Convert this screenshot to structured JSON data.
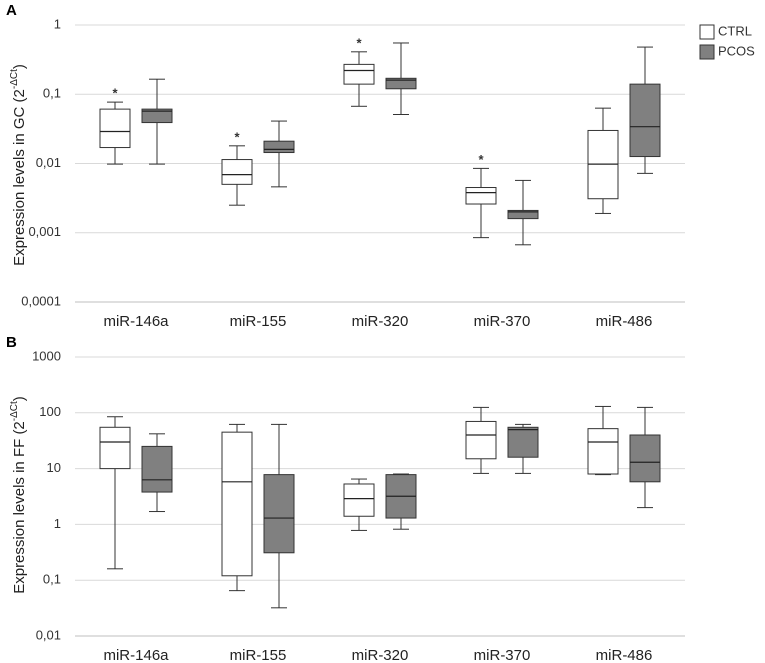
{
  "chart_data": [
    {
      "type": "box",
      "panel": "A",
      "ylabel": {
        "base": "Expression levels in GC (2",
        "sup": "-ΔCt",
        "end": ")"
      },
      "categories": [
        "miR-146a",
        "miR-155",
        "miR-320",
        "miR-370",
        "miR-486"
      ],
      "log_scale": true,
      "grid": true,
      "legend": "upper right",
      "ylim": [
        0.0001,
        1
      ],
      "yticks": [
        1,
        {
          "value": 0.1,
          "label": "0,1"
        },
        {
          "value": 0.01,
          "label": "0,01"
        },
        {
          "value": 0.001,
          "label": "0,001"
        },
        {
          "value": 0.0001,
          "label": "0,0001"
        }
      ],
      "series": [
        {
          "name": "CTRL",
          "color": "#ffffff",
          "values": [
            {
              "min": 0.0098,
              "q1": 0.017,
              "median": 0.029,
              "q3": 0.061,
              "max": 0.077
            },
            {
              "min": 0.0025,
              "q1": 0.005,
              "median": 0.0069,
              "q3": 0.0114,
              "max": 0.018
            },
            {
              "min": 0.067,
              "q1": 0.14,
              "median": 0.22,
              "q3": 0.27,
              "max": 0.41
            },
            {
              "min": 0.00085,
              "q1": 0.0026,
              "median": 0.0038,
              "q3": 0.0045,
              "max": 0.0085
            },
            {
              "min": 0.0019,
              "q1": 0.0031,
              "median": 0.0098,
              "q3": 0.03,
              "max": 0.063
            }
          ]
        },
        {
          "name": "PCOS",
          "color": "#808080",
          "values": [
            {
              "min": 0.0098,
              "q1": 0.039,
              "median": 0.057,
              "q3": 0.061,
              "max": 0.165
            },
            {
              "min": 0.0046,
              "q1": 0.0144,
              "median": 0.016,
              "q3": 0.021,
              "max": 0.041
            },
            {
              "min": 0.051,
              "q1": 0.12,
              "median": 0.16,
              "q3": 0.17,
              "max": 0.55
            },
            {
              "min": 0.00067,
              "q1": 0.0016,
              "median": 0.002,
              "q3": 0.0021,
              "max": 0.0057
            },
            {
              "min": 0.0072,
              "q1": 0.0126,
              "median": 0.034,
              "q3": 0.14,
              "max": 0.48
            }
          ]
        }
      ],
      "annotations": [
        {
          "text": "*",
          "category": "miR-146a",
          "series": "CTRL"
        },
        {
          "text": "*",
          "category": "miR-155",
          "series": "CTRL"
        },
        {
          "text": "*",
          "category": "miR-320",
          "series": "CTRL"
        },
        {
          "text": "*",
          "category": "miR-370",
          "series": "CTRL"
        }
      ]
    },
    {
      "type": "box",
      "panel": "B",
      "ylabel": {
        "base": "Expression levels in FF (2",
        "sup": "-ΔCt",
        "end": ")"
      },
      "categories": [
        "miR-146a",
        "miR-155",
        "miR-320",
        "miR-370",
        "miR-486"
      ],
      "log_scale": true,
      "grid": true,
      "ylim": [
        0.01,
        1000
      ],
      "yticks": [
        1000,
        100,
        10,
        1,
        {
          "value": 0.1,
          "label": "0,1"
        },
        {
          "value": 0.01,
          "label": "0,01"
        }
      ],
      "series": [
        {
          "color": "#ffffff",
          "values": [
            {
              "min": 0.16,
              "q1": 10,
              "median": 30,
              "q3": 55,
              "max": 85
            },
            {
              "min": 0.065,
              "q1": 0.12,
              "median": 5.8,
              "q3": 45,
              "max": 62
            },
            {
              "min": 0.78,
              "q1": 1.4,
              "median": 2.9,
              "q3": 5.3,
              "max": 6.5
            },
            {
              "min": 8.2,
              "q1": 15,
              "median": 40,
              "q3": 70,
              "max": 125
            },
            {
              "min": 7.8,
              "q1": 8,
              "median": 30,
              "q3": 52,
              "max": 130
            }
          ]
        },
        {
          "color": "#808080",
          "values": [
            {
              "min": 1.7,
              "q1": 3.8,
              "median": 6.3,
              "q3": 25,
              "max": 42
            },
            {
              "min": 0.032,
              "q1": 0.31,
              "median": 1.3,
              "q3": 7.8,
              "max": 62
            },
            {
              "min": 0.82,
              "q1": 1.3,
              "median": 3.2,
              "q3": 7.8,
              "max": 8
            },
            {
              "min": 8.2,
              "q1": 16,
              "median": 50,
              "q3": 55,
              "max": 62
            },
            {
              "min": 2,
              "q1": 5.8,
              "median": 13,
              "q3": 40,
              "max": 125
            }
          ]
        }
      ]
    }
  ]
}
